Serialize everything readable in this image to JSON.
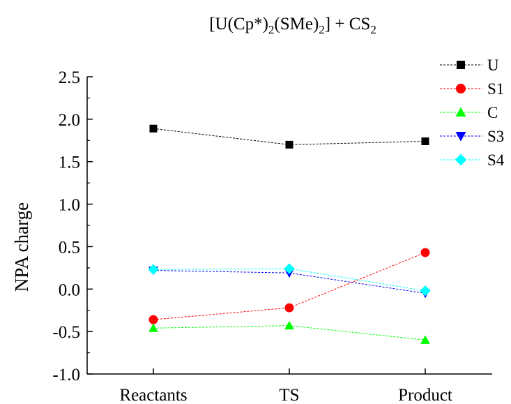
{
  "chart_data": {
    "type": "line",
    "title_parts": [
      "[U(Cp*)",
      "2",
      "(SMe)",
      "2",
      "] + CS",
      "2"
    ],
    "ylabel": "NPA charge",
    "xlabel": "",
    "categories": [
      "Reactants",
      "TS",
      "Product"
    ],
    "ylim": [
      -1.0,
      2.5
    ],
    "yticks": [
      "-1.0",
      "-0.5",
      "0.0",
      "0.5",
      "1.0",
      "1.5",
      "2.0",
      "2.5"
    ],
    "legend_position": "top-right",
    "grid": false,
    "series": [
      {
        "name": "U",
        "values": [
          1.89,
          1.7,
          1.74
        ],
        "color": "#000000",
        "marker": "square"
      },
      {
        "name": "S1",
        "values": [
          -0.36,
          -0.22,
          0.43
        ],
        "color": "#ff0000",
        "marker": "circle"
      },
      {
        "name": "C",
        "values": [
          -0.46,
          -0.43,
          -0.6
        ],
        "color": "#00ff00",
        "marker": "triangle-up"
      },
      {
        "name": "S3",
        "values": [
          0.22,
          0.19,
          -0.05
        ],
        "color": "#0000ff",
        "marker": "triangle-down"
      },
      {
        "name": "S4",
        "values": [
          0.23,
          0.24,
          -0.02
        ],
        "color": "#00ffff",
        "marker": "diamond"
      }
    ]
  }
}
